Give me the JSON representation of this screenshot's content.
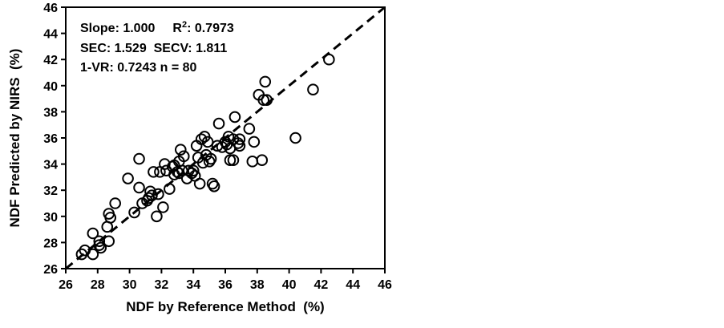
{
  "chart_data": {
    "type": "scatter",
    "xlabel": "NDF by Reference Method  (%)",
    "ylabel": "NDF Predicted by NIRS  (%)",
    "xlim": [
      26,
      46
    ],
    "ylim": [
      26,
      46
    ],
    "xticks": [
      "26",
      "28",
      "30",
      "32",
      "34",
      "36",
      "38",
      "40",
      "42",
      "44",
      "46"
    ],
    "yticks": [
      "26",
      "28",
      "30",
      "32",
      "34",
      "36",
      "38",
      "40",
      "42",
      "44",
      "46"
    ],
    "grid": false,
    "reference_line": {
      "style": "dashed",
      "from": [
        26,
        26
      ],
      "to": [
        46,
        46
      ]
    },
    "stats": {
      "line1_a": "Slope: 1.000",
      "line1_b": "R",
      "line1_sup": "2",
      "line1_c": ": 0.7973",
      "line2": "SEC: 1.529  SECV: 1.811",
      "line3": "1-VR: 0.7243  n = 80"
    },
    "marker": "open-circle",
    "points": [
      [
        27.0,
        27.1
      ],
      [
        27.2,
        27.4
      ],
      [
        27.7,
        27.1
      ],
      [
        27.7,
        28.7
      ],
      [
        28.1,
        28.1
      ],
      [
        28.1,
        27.8
      ],
      [
        28.2,
        27.6
      ],
      [
        28.7,
        28.1
      ],
      [
        28.6,
        29.2
      ],
      [
        28.7,
        30.2
      ],
      [
        28.8,
        29.9
      ],
      [
        29.1,
        31.0
      ],
      [
        29.9,
        32.9
      ],
      [
        30.3,
        30.3
      ],
      [
        30.6,
        34.4
      ],
      [
        30.6,
        32.2
      ],
      [
        30.8,
        31.0
      ],
      [
        31.1,
        31.2
      ],
      [
        31.2,
        31.4
      ],
      [
        31.3,
        31.9
      ],
      [
        31.4,
        31.6
      ],
      [
        31.5,
        33.4
      ],
      [
        31.7,
        30.0
      ],
      [
        31.8,
        31.7
      ],
      [
        31.9,
        33.4
      ],
      [
        32.1,
        30.7
      ],
      [
        32.2,
        34.0
      ],
      [
        32.3,
        33.5
      ],
      [
        32.5,
        32.1
      ],
      [
        32.7,
        33.8
      ],
      [
        32.8,
        33.2
      ],
      [
        32.8,
        33.9
      ],
      [
        33.0,
        33.4
      ],
      [
        33.1,
        34.2
      ],
      [
        33.2,
        35.1
      ],
      [
        33.3,
        33.5
      ],
      [
        33.4,
        34.6
      ],
      [
        33.6,
        32.9
      ],
      [
        33.7,
        33.5
      ],
      [
        33.9,
        33.3
      ],
      [
        34.0,
        33.5
      ],
      [
        34.1,
        33.1
      ],
      [
        34.2,
        35.4
      ],
      [
        34.3,
        34.5
      ],
      [
        34.4,
        32.5
      ],
      [
        34.5,
        35.9
      ],
      [
        34.6,
        34.1
      ],
      [
        34.7,
        36.1
      ],
      [
        34.8,
        34.7
      ],
      [
        34.9,
        35.7
      ],
      [
        35.0,
        34.2
      ],
      [
        35.1,
        34.4
      ],
      [
        35.2,
        32.5
      ],
      [
        35.3,
        32.3
      ],
      [
        35.5,
        35.4
      ],
      [
        35.6,
        37.1
      ],
      [
        35.8,
        35.3
      ],
      [
        36.0,
        35.7
      ],
      [
        36.1,
        35.5
      ],
      [
        36.2,
        36.1
      ],
      [
        36.3,
        35.2
      ],
      [
        36.3,
        34.3
      ],
      [
        36.5,
        34.3
      ],
      [
        36.5,
        35.9
      ],
      [
        36.6,
        37.6
      ],
      [
        36.8,
        35.6
      ],
      [
        36.9,
        35.4
      ],
      [
        36.9,
        35.9
      ],
      [
        37.5,
        36.7
      ],
      [
        37.8,
        35.7
      ],
      [
        37.7,
        34.2
      ],
      [
        38.1,
        39.3
      ],
      [
        38.3,
        34.3
      ],
      [
        38.4,
        38.9
      ],
      [
        38.6,
        38.9
      ],
      [
        38.5,
        40.3
      ],
      [
        40.4,
        36.0
      ],
      [
        41.5,
        39.7
      ],
      [
        42.5,
        42.0
      ],
      [
        33.1,
        33.3
      ]
    ]
  }
}
